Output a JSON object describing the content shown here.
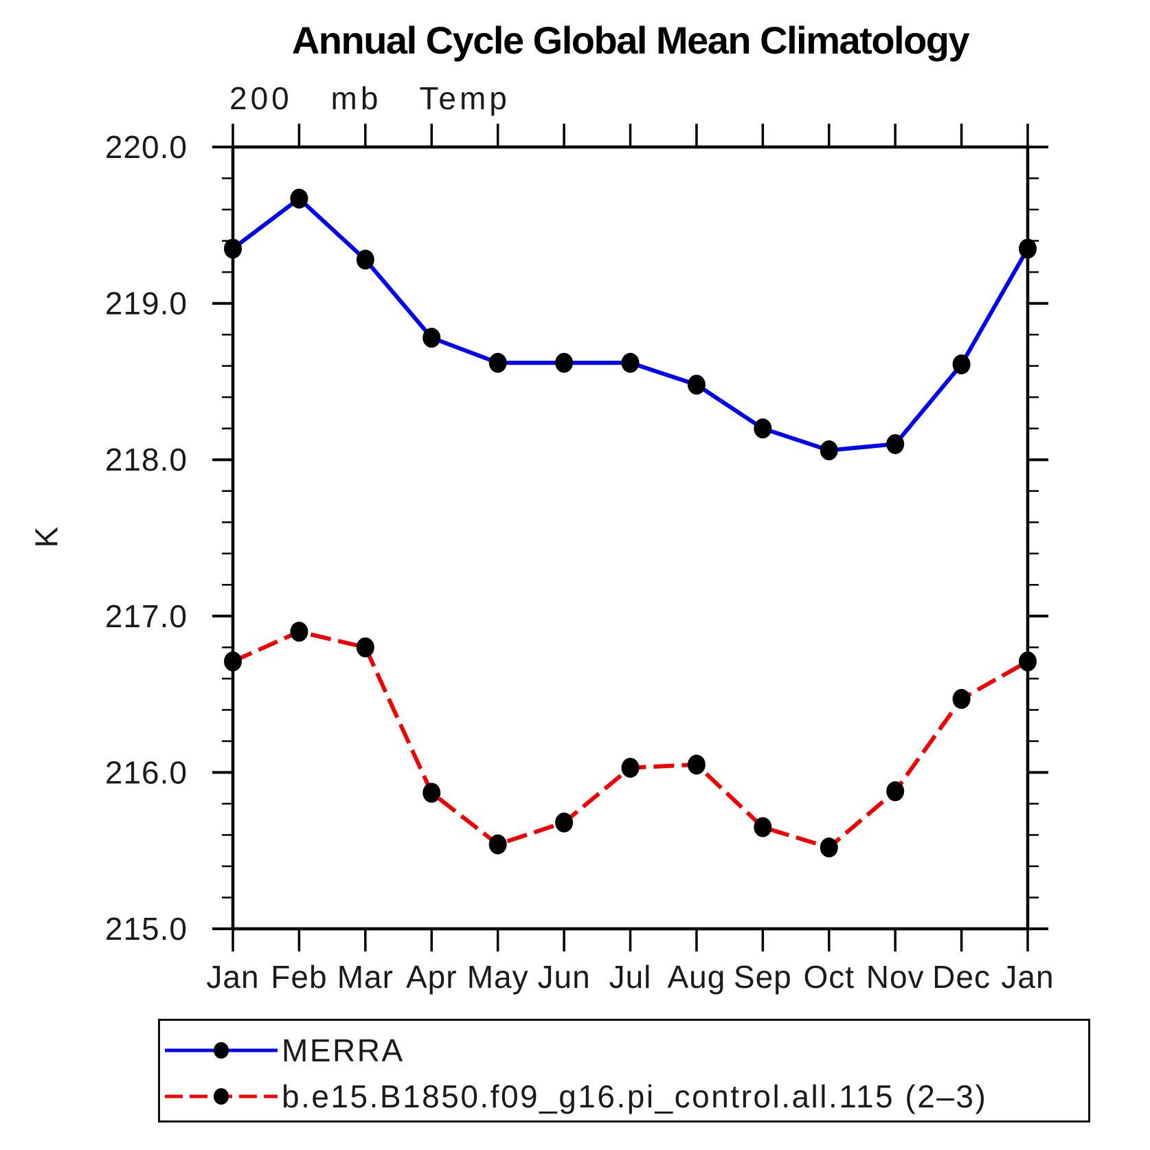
{
  "chart_data": {
    "type": "line",
    "title": "Annual Cycle Global Mean Climatology",
    "subtitle": "200 mb Temp",
    "ylabel": "K",
    "xlabel": "",
    "categories": [
      "Jan",
      "Feb",
      "Mar",
      "Apr",
      "May",
      "Jun",
      "Jul",
      "Aug",
      "Sep",
      "Oct",
      "Nov",
      "Dec",
      "Jan"
    ],
    "ylim": [
      215.0,
      220.0
    ],
    "ytick_step": 1.0,
    "ytick_minor_step": 0.2,
    "ytick_labels": [
      "215.0",
      "216.0",
      "217.0",
      "218.0",
      "219.0",
      "220.0"
    ],
    "grid": false,
    "legend_position": "bottom",
    "marker": "filled-circle",
    "marker_color": "#000000",
    "axis_color": "#000000",
    "series": [
      {
        "name": "MERRA",
        "color": "#0000ee",
        "style": "solid",
        "values": [
          219.35,
          219.67,
          219.28,
          218.78,
          218.62,
          218.62,
          218.62,
          218.48,
          218.2,
          218.06,
          218.1,
          218.61,
          219.35
        ]
      },
      {
        "name": "b.e15.B1850.f09_g16.pi_control.all.115 (2–3)",
        "color": "#ee0000",
        "style": "dashed",
        "values": [
          216.71,
          216.9,
          216.8,
          215.87,
          215.54,
          215.68,
          216.03,
          216.05,
          215.65,
          215.52,
          215.88,
          216.47,
          216.71
        ]
      }
    ]
  }
}
